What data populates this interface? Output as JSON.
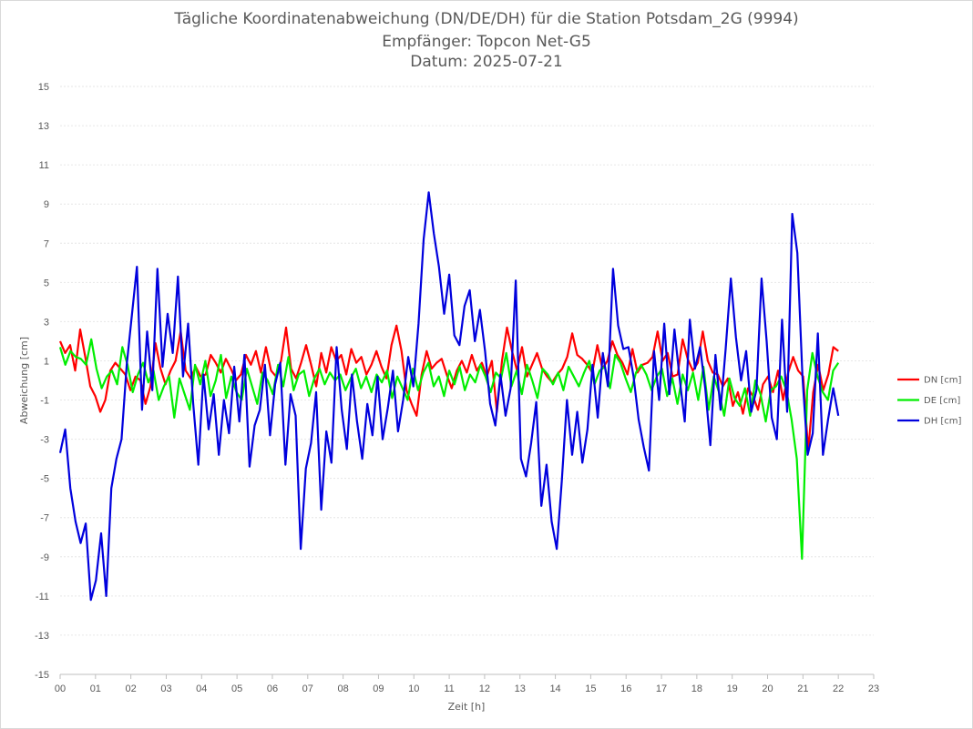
{
  "chart_data": {
    "type": "line",
    "title": "Tägliche Koordinatenabweichung (DN/DE/DH) für die Station Potsdam_2G (9994)",
    "subtitle": [
      "Empfänger: Topcon Net-G5",
      "Datum: 2025-07-21"
    ],
    "xlabel": "Zeit [h]",
    "ylabel": "Abweichung [cm]",
    "xlim": [
      0,
      22
    ],
    "ylim": [
      -15,
      15
    ],
    "x_ticks": [
      "00",
      "01",
      "02",
      "03",
      "04",
      "05",
      "06",
      "07",
      "08",
      "09",
      "10",
      "11",
      "12",
      "13",
      "14",
      "15",
      "16",
      "17",
      "18",
      "19",
      "20",
      "21",
      "22",
      "23"
    ],
    "y_ticks": [
      15,
      13,
      11,
      9,
      7,
      5,
      3,
      1,
      -1,
      -3,
      -5,
      -7,
      -9,
      -11,
      -13,
      -15
    ],
    "grid": true,
    "legend_position": "right",
    "series": [
      {
        "name": "DN [cm]",
        "color": "#ff0000",
        "values": [
          2.0,
          1.4,
          1.8,
          0.5,
          2.6,
          1.2,
          -0.3,
          -0.8,
          -1.6,
          -1.0,
          0.5,
          0.9,
          0.6,
          0.3,
          -0.5,
          0.2,
          0.0,
          -1.2,
          -0.3,
          1.9,
          0.6,
          -0.2,
          0.5,
          1.0,
          2.5,
          0.5,
          0.1,
          0.7,
          0.2,
          0.3,
          1.3,
          0.9,
          0.4,
          1.1,
          0.6,
          0.0,
          0.3,
          1.3,
          0.8,
          1.5,
          0.4,
          1.7,
          0.5,
          0.2,
          1.0,
          2.7,
          0.6,
          0.1,
          0.9,
          1.8,
          0.8,
          -0.3,
          1.4,
          0.4,
          1.7,
          1.0,
          1.3,
          0.3,
          1.6,
          0.9,
          1.2,
          0.3,
          0.8,
          1.5,
          0.7,
          0.1,
          1.8,
          2.8,
          1.5,
          -0.5,
          -1.2,
          -1.8,
          0.3,
          1.5,
          0.6,
          0.9,
          1.1,
          0.3,
          -0.4,
          0.5,
          1.0,
          0.4,
          1.3,
          0.5,
          0.9,
          0.2,
          1.0,
          -1.6,
          1.0,
          2.7,
          1.5,
          0.5,
          1.7,
          0.2,
          0.8,
          1.4,
          0.6,
          0.2,
          -0.1,
          0.3,
          0.6,
          1.2,
          2.4,
          1.3,
          1.1,
          0.8,
          0.4,
          1.8,
          0.6,
          1.0,
          2.0,
          1.3,
          0.9,
          0.3,
          1.6,
          0.4,
          0.8,
          0.9,
          1.2,
          2.5,
          1.0,
          1.4,
          0.2,
          0.3,
          2.1,
          1.1,
          0.5,
          0.9,
          2.5,
          1.0,
          0.4,
          0.3,
          -0.3,
          0.1,
          -1.3,
          -0.6,
          -1.7,
          -0.4,
          -0.8,
          -1.5,
          -0.2,
          0.2,
          -0.6,
          0.5,
          -1.0,
          0.4,
          1.2,
          0.5,
          0.2,
          -3.6,
          -0.6,
          0.8,
          -0.5,
          0.3,
          1.7,
          1.5
        ]
      },
      {
        "name": "DE [cm]",
        "color": "#00ee00",
        "values": [
          1.7,
          0.8,
          1.5,
          1.2,
          1.1,
          0.8,
          2.1,
          0.6,
          -0.4,
          0.2,
          0.5,
          -0.2,
          1.7,
          0.8,
          -0.6,
          0.3,
          0.9,
          -0.1,
          0.5,
          -1.0,
          -0.3,
          0.2,
          -1.9,
          0.1,
          -0.7,
          -1.5,
          0.8,
          -0.2,
          1.0,
          -0.8,
          0.0,
          1.3,
          -0.9,
          0.2,
          -0.6,
          -1.0,
          0.6,
          -0.3,
          -1.2,
          0.4,
          0.0,
          -0.7,
          0.8,
          -0.3,
          1.2,
          -0.5,
          0.3,
          0.5,
          -0.8,
          0.1,
          0.6,
          -0.2,
          0.4,
          0.0,
          0.3,
          -0.5,
          0.1,
          0.6,
          -0.4,
          0.2,
          -0.6,
          0.3,
          -0.1,
          0.5,
          -0.9,
          0.2,
          -0.4,
          -1.0,
          0.6,
          -0.5,
          0.4,
          0.9,
          -0.3,
          0.2,
          -0.8,
          0.5,
          -0.2,
          0.7,
          -0.5,
          0.3,
          -0.1,
          0.8,
          0.2,
          -0.6,
          0.4,
          0.1,
          1.4,
          -0.3,
          0.5,
          -0.7,
          0.8,
          0.0,
          -0.9,
          0.6,
          0.3,
          -0.2,
          0.4,
          -0.5,
          0.7,
          0.2,
          -0.3,
          0.4,
          1.0,
          -0.2,
          0.5,
          0.7,
          -0.4,
          1.3,
          0.9,
          0.1,
          -0.6,
          0.4,
          0.8,
          0.3,
          -0.5,
          0.2,
          0.6,
          -0.8,
          0.1,
          -1.2,
          0.3,
          -0.5,
          0.4,
          -1.0,
          0.7,
          -1.5,
          0.2,
          -0.6,
          -1.8,
          0.1,
          -0.9,
          -1.3,
          -0.4,
          -1.8,
          0.0,
          -0.7,
          -2.1,
          -0.5,
          -0.3,
          0.2,
          -0.5,
          -2.0,
          -4.0,
          -9.1,
          -0.5,
          1.4,
          0.2,
          -0.6,
          -1.0,
          0.5,
          0.9
        ]
      },
      {
        "name": "DH [cm]",
        "color": "#0000dd",
        "values": [
          -3.7,
          -2.5,
          -5.5,
          -7.2,
          -8.3,
          -7.3,
          -11.2,
          -10.2,
          -7.8,
          -11.0,
          -5.5,
          -4.0,
          -3.0,
          0.8,
          3.3,
          5.8,
          -1.5,
          2.5,
          -0.5,
          5.7,
          0.7,
          3.4,
          1.4,
          5.3,
          0.2,
          2.9,
          -1.2,
          -4.3,
          0.3,
          -2.5,
          -0.7,
          -3.8,
          -1.0,
          -2.7,
          0.7,
          -2.1,
          1.3,
          -4.4,
          -2.3,
          -1.5,
          0.8,
          -2.8,
          -0.2,
          0.9,
          -4.3,
          -0.7,
          -1.8,
          -8.6,
          -4.5,
          -3.2,
          -0.6,
          -6.6,
          -2.6,
          -4.2,
          1.7,
          -1.5,
          -3.5,
          0.3,
          -2.1,
          -4.0,
          -1.2,
          -2.8,
          0.2,
          -3.0,
          -1.4,
          0.5,
          -2.6,
          -1.0,
          1.2,
          -0.3,
          2.9,
          7.2,
          9.6,
          7.5,
          5.8,
          3.4,
          5.4,
          2.3,
          1.8,
          3.8,
          4.6,
          2.0,
          3.6,
          1.5,
          -1.2,
          -2.3,
          0.3,
          -1.8,
          -0.4,
          5.1,
          -4.0,
          -4.9,
          -3.2,
          -1.1,
          -6.4,
          -4.3,
          -7.2,
          -8.6,
          -5.1,
          -1.0,
          -3.8,
          -1.6,
          -4.2,
          -2.5,
          0.8,
          -1.9,
          1.4,
          -0.3,
          5.7,
          2.8,
          1.6,
          1.7,
          0.2,
          -2.0,
          -3.4,
          -4.6,
          1.5,
          -1.0,
          2.9,
          -0.7,
          2.6,
          0.1,
          -2.1,
          3.1,
          0.6,
          1.7,
          -0.4,
          -3.3,
          1.3,
          -1.5,
          1.6,
          5.2,
          2.2,
          0.0,
          1.5,
          -1.6,
          -0.5,
          5.2,
          2.0,
          -1.9,
          -3.0,
          3.1,
          -1.6,
          8.5,
          6.5,
          0.2,
          -3.8,
          -2.7,
          2.4,
          -3.8,
          -2.0,
          -0.4,
          -1.8
        ]
      }
    ]
  }
}
